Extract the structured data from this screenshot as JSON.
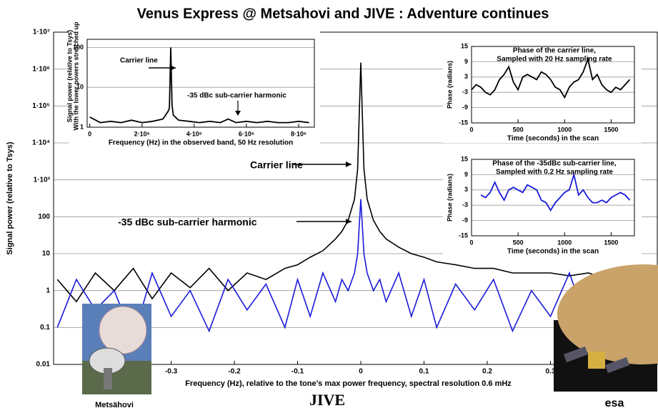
{
  "title": "Venus Express @ Metsahovi and JIVE : Adventure continues",
  "logos": [
    "Metsähovi",
    "JIVE",
    "esa"
  ],
  "chart_data": [
    {
      "type": "line",
      "log_y": true,
      "grid": true,
      "xlabel": "Frequency (Hz), relative to the tone's max power frequency, spectral resolution 0.6 mHz",
      "ylabel": "Signal power (relative to Tsys)",
      "annotations": [
        "Carrier line",
        "-35 dBc sub-carrier harmonic"
      ],
      "xlim": [
        -0.486,
        0.469
      ],
      "ylim": [
        0.01,
        10000000
      ],
      "xticks": [
        -0.3,
        -0.2,
        -0.1,
        0,
        0.1,
        0.2,
        0.3
      ],
      "yticks": [
        0.01,
        0.1,
        1,
        10,
        100,
        {
          "value": 1000,
          "label": "1·10³"
        },
        {
          "value": 10000,
          "label": "1·10⁴"
        },
        {
          "value": 100000,
          "label": "1·10⁵"
        },
        {
          "value": 1000000,
          "label": "1·10⁶"
        },
        {
          "value": 10000000,
          "label": "1·10⁷"
        }
      ],
      "x": [
        -0.48,
        -0.45,
        -0.42,
        -0.39,
        -0.36,
        -0.33,
        -0.3,
        -0.27,
        -0.24,
        -0.21,
        -0.18,
        -0.15,
        -0.12,
        -0.1,
        -0.08,
        -0.06,
        -0.04,
        -0.03,
        -0.02,
        -0.01,
        -0.005,
        0,
        0.005,
        0.01,
        0.02,
        0.03,
        0.04,
        0.06,
        0.08,
        0.1,
        0.12,
        0.15,
        0.18,
        0.21,
        0.24,
        0.27,
        0.3,
        0.33,
        0.36,
        0.39,
        0.42,
        0.45
      ],
      "series": [
        {
          "color": "#000000",
          "values": [
            2,
            0.5,
            3,
            1,
            4,
            0.6,
            3,
            1.2,
            4,
            1,
            3,
            2,
            4,
            5,
            8,
            12,
            25,
            40,
            80,
            300,
            2000,
            1500000,
            2000,
            300,
            80,
            40,
            25,
            15,
            10,
            8,
            6,
            5,
            4,
            4,
            3,
            3,
            3,
            2.5,
            3,
            2,
            2,
            1.5
          ]
        },
        {
          "color": "#1a1adb",
          "values": [
            0.1,
            2,
            0.3,
            1,
            0.05,
            3,
            0.2,
            1,
            0.08,
            2,
            0.3,
            1.5,
            0.1,
            2,
            0.2,
            3,
            0.5,
            2,
            1,
            3,
            10,
            300,
            10,
            3,
            1,
            2,
            0.5,
            3,
            0.2,
            2,
            0.1,
            1.5,
            0.3,
            2,
            0.08,
            1,
            0.2,
            3,
            0.1,
            1,
            0.3,
            2
          ]
        }
      ]
    },
    {
      "type": "line",
      "log_y": true,
      "grid": true,
      "xlabel": "Frequency (Hz) in the observed band, 50 Hz resolution",
      "ylabel": [
        "Signal power (relative to Tsys)",
        "With the lower powers stretched up"
      ],
      "annotations": [
        "Carrier line",
        "-35 dBc sub-carrier harmonic"
      ],
      "xlim": [
        -100000,
        8600000
      ],
      "ylim": [
        1,
        160
      ],
      "xticks": [
        0,
        {
          "value": 2000000,
          "label": "2·10⁶"
        },
        {
          "value": 4000000,
          "label": "4·10⁶"
        },
        {
          "value": 6000000,
          "label": "6·10⁶"
        },
        {
          "value": 8000000,
          "label": "8·10⁶"
        }
      ],
      "yticks": [
        1,
        10,
        100
      ],
      "x": [
        0,
        400000,
        800000,
        1200000,
        1600000,
        2000000,
        2400000,
        2800000,
        3000000,
        3050000,
        3100000,
        3150000,
        3200000,
        3400000,
        3800000,
        4200000,
        4600000,
        5000000,
        5300000,
        5600000,
        6000000,
        6400000,
        6800000,
        7200000,
        7600000,
        8000000,
        8400000
      ],
      "series": [
        {
          "color": "#000000",
          "values": [
            1.8,
            1.3,
            1.4,
            1.3,
            1.5,
            1.3,
            1.4,
            1.6,
            2.5,
            3,
            100,
            3.5,
            2,
            1.5,
            1.4,
            1.3,
            1.4,
            1.3,
            1.6,
            1.3,
            1.4,
            1.3,
            1.4,
            1.3,
            1.3,
            1.4,
            1.3
          ]
        }
      ]
    },
    {
      "type": "line",
      "grid": true,
      "title": [
        "Phase of the carrier line,",
        "Sampled with 20 Hz sampling rate"
      ],
      "xlabel": "Time (seconds) in the scan",
      "ylabel": "Phase (radians)",
      "xlim": [
        0,
        1750
      ],
      "ylim": [
        -15,
        15
      ],
      "xticks": [
        0,
        500,
        1000,
        1500
      ],
      "yticks": [
        -15,
        -9,
        -3,
        3,
        9,
        15
      ],
      "x": [
        0,
        50,
        100,
        150,
        200,
        250,
        300,
        350,
        400,
        450,
        500,
        550,
        600,
        650,
        700,
        750,
        800,
        850,
        900,
        950,
        1000,
        1050,
        1100,
        1150,
        1200,
        1250,
        1300,
        1350,
        1400,
        1450,
        1500,
        1550,
        1600,
        1650,
        1700
      ],
      "series": [
        {
          "color": "#000000",
          "values": [
            -2,
            0,
            -1,
            -3,
            -4,
            -2,
            2,
            4,
            7,
            1,
            -2,
            3,
            4,
            3,
            2,
            5,
            4,
            2,
            -1,
            -2,
            -5,
            -1,
            1,
            2,
            5,
            10,
            2,
            4,
            0,
            -2,
            -3,
            -1,
            -2,
            0,
            2
          ]
        }
      ]
    },
    {
      "type": "line",
      "grid": true,
      "title": [
        "Phase of the -35dBc sub-carrier line,",
        "Sampled with 0.2 Hz sampling rate"
      ],
      "xlabel": "Time (seconds) in the scan",
      "ylabel": "Phase (radians)",
      "xlim": [
        0,
        1750
      ],
      "ylim": [
        -15,
        15
      ],
      "xticks": [
        0,
        500,
        1000,
        1500
      ],
      "yticks": [
        -15,
        -9,
        -3,
        3,
        9,
        15
      ],
      "x": [
        100,
        150,
        200,
        250,
        300,
        350,
        400,
        450,
        500,
        550,
        600,
        650,
        700,
        750,
        800,
        850,
        900,
        950,
        1000,
        1050,
        1100,
        1150,
        1200,
        1250,
        1300,
        1350,
        1400,
        1450,
        1500,
        1550,
        1600,
        1650,
        1700
      ],
      "series": [
        {
          "color": "#1a1adb",
          "values": [
            1,
            0,
            2,
            6,
            2,
            -1,
            3,
            4,
            3,
            2,
            5,
            4,
            3,
            -1,
            -2,
            -5,
            -2,
            0,
            2,
            3,
            9,
            1,
            3,
            0,
            -2,
            -2,
            -1,
            -2,
            0,
            1,
            2,
            1,
            -1
          ]
        }
      ]
    }
  ]
}
